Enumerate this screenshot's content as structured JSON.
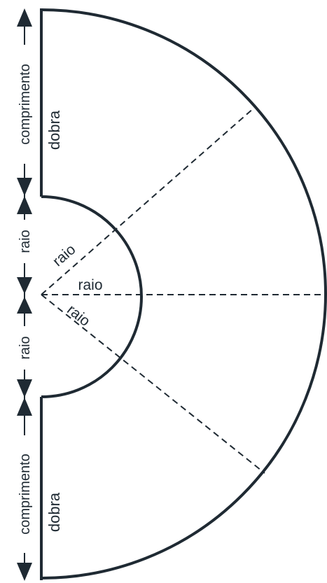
{
  "labels": {
    "length": "comprimento",
    "radius": "raio",
    "fold": "dobra"
  },
  "colors": {
    "stroke": "#1f2a33",
    "background": "#ffffff"
  }
}
